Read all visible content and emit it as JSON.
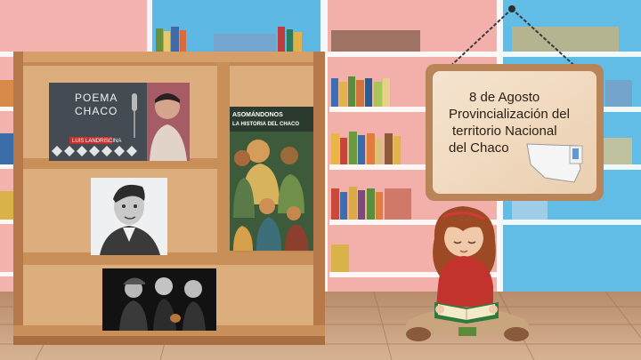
{
  "sign": {
    "line1": "8 de Agosto",
    "line2": "Provincialización del",
    "line3": "territorio Nacional",
    "line4": "del Chaco"
  },
  "books": {
    "poema": {
      "title_line1": "POEMA",
      "title_line2": "CHACO",
      "author": "LUIS LANDRISCINA"
    },
    "historia": {
      "title_line1": "ASOMÁNDONOS",
      "title_line2": "LA HISTORIA DEL CHACO"
    }
  },
  "colors": {
    "wall_pink": "#f1a7a3",
    "wall_blue": "#58b8e3",
    "shelf_wood": "#d6a574",
    "shelf_frame": "#b77c48",
    "floor": "#c79d7a",
    "sign_board": "#f2dcc2",
    "girl_shirt": "#c3322e",
    "girl_hair": "#9a4a24"
  }
}
